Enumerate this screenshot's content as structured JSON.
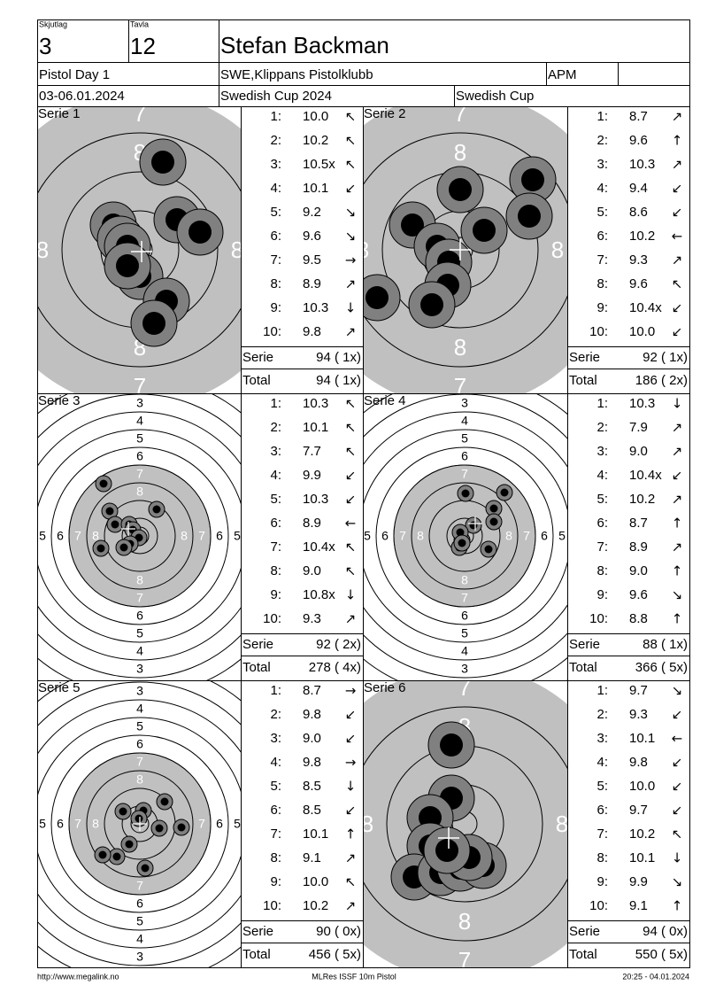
{
  "header": {
    "squad_label": "Skjutlag",
    "squad": "3",
    "lane_label": "Tavla",
    "lane": "12",
    "name": "Stefan Backman",
    "event": "Pistol Day 1",
    "club": "SWE,Klippans Pistolklubb",
    "class": "APM",
    "date": "03-06.01.2024",
    "competition": "Swedish Cup 2024",
    "cup": "Swedish Cup"
  },
  "ring_labels": [
    "3",
    "4",
    "5",
    "6",
    "7",
    "8"
  ],
  "series": [
    {
      "title": "Serie 1",
      "shots": [
        {
          "n": "1:",
          "score": "10.0",
          "dir": "↖"
        },
        {
          "n": "2:",
          "score": "10.2",
          "dir": "↖"
        },
        {
          "n": "3:",
          "score": "10.5x",
          "dir": "↖"
        },
        {
          "n": "4:",
          "score": "10.1",
          "dir": "↙"
        },
        {
          "n": "5:",
          "score": "9.2",
          "dir": "↘"
        },
        {
          "n": "6:",
          "score": "9.6",
          "dir": "↘"
        },
        {
          "n": "7:",
          "score": "9.5",
          "dir": "→"
        },
        {
          "n": "8:",
          "score": "8.9",
          "dir": "↗"
        },
        {
          "n": "9:",
          "score": "10.3",
          "dir": "↓"
        },
        {
          "n": "10:",
          "score": "9.8",
          "dir": "↗"
        }
      ],
      "serie_label": "Serie",
      "serie": "94 ( 1x)",
      "total_label": "Total",
      "total": "94 ( 1x)"
    },
    {
      "title": "Serie 2",
      "shots": [
        {
          "n": "1:",
          "score": "8.7",
          "dir": "↗"
        },
        {
          "n": "2:",
          "score": "9.6",
          "dir": "↑"
        },
        {
          "n": "3:",
          "score": "10.3",
          "dir": "↗"
        },
        {
          "n": "4:",
          "score": "9.4",
          "dir": "↙"
        },
        {
          "n": "5:",
          "score": "8.6",
          "dir": "↙"
        },
        {
          "n": "6:",
          "score": "10.2",
          "dir": "←"
        },
        {
          "n": "7:",
          "score": "9.3",
          "dir": "↗"
        },
        {
          "n": "8:",
          "score": "9.6",
          "dir": "↖"
        },
        {
          "n": "9:",
          "score": "10.4x",
          "dir": "↙"
        },
        {
          "n": "10:",
          "score": "10.0",
          "dir": "↙"
        }
      ],
      "serie_label": "Serie",
      "serie": "92 ( 1x)",
      "total_label": "Total",
      "total": "186 ( 2x)"
    },
    {
      "title": "Serie 3",
      "shots": [
        {
          "n": "1:",
          "score": "10.3",
          "dir": "↖"
        },
        {
          "n": "2:",
          "score": "10.1",
          "dir": "↖"
        },
        {
          "n": "3:",
          "score": "7.7",
          "dir": "↖"
        },
        {
          "n": "4:",
          "score": "9.9",
          "dir": "↙"
        },
        {
          "n": "5:",
          "score": "10.3",
          "dir": "↙"
        },
        {
          "n": "6:",
          "score": "8.9",
          "dir": "←"
        },
        {
          "n": "7:",
          "score": "10.4x",
          "dir": "↖"
        },
        {
          "n": "8:",
          "score": "9.0",
          "dir": "↖"
        },
        {
          "n": "9:",
          "score": "10.8x",
          "dir": "↓"
        },
        {
          "n": "10:",
          "score": "9.3",
          "dir": "↗"
        }
      ],
      "serie_label": "Serie",
      "serie": "92 ( 2x)",
      "total_label": "Total",
      "total": "278 ( 4x)"
    },
    {
      "title": "Serie 4",
      "shots": [
        {
          "n": "1:",
          "score": "10.3",
          "dir": "↓"
        },
        {
          "n": "2:",
          "score": "7.9",
          "dir": "↗"
        },
        {
          "n": "3:",
          "score": "9.0",
          "dir": "↗"
        },
        {
          "n": "4:",
          "score": "10.4x",
          "dir": "↙"
        },
        {
          "n": "5:",
          "score": "10.2",
          "dir": "↗"
        },
        {
          "n": "6:",
          "score": "8.7",
          "dir": "↑"
        },
        {
          "n": "7:",
          "score": "8.9",
          "dir": "↗"
        },
        {
          "n": "8:",
          "score": "9.0",
          "dir": "↑"
        },
        {
          "n": "9:",
          "score": "9.6",
          "dir": "↘"
        },
        {
          "n": "10:",
          "score": "8.8",
          "dir": "↑"
        }
      ],
      "serie_label": "Serie",
      "serie": "88 ( 1x)",
      "total_label": "Total",
      "total": "366 ( 5x)"
    },
    {
      "title": "Serie 5",
      "shots": [
        {
          "n": "1:",
          "score": "8.7",
          "dir": "→"
        },
        {
          "n": "2:",
          "score": "9.8",
          "dir": "↙"
        },
        {
          "n": "3:",
          "score": "9.0",
          "dir": "↙"
        },
        {
          "n": "4:",
          "score": "9.8",
          "dir": "→"
        },
        {
          "n": "5:",
          "score": "8.5",
          "dir": "↓"
        },
        {
          "n": "6:",
          "score": "8.5",
          "dir": "↙"
        },
        {
          "n": "7:",
          "score": "10.1",
          "dir": "↑"
        },
        {
          "n": "8:",
          "score": "9.1",
          "dir": "↗"
        },
        {
          "n": "9:",
          "score": "10.0",
          "dir": "↖"
        },
        {
          "n": "10:",
          "score": "10.2",
          "dir": "↗"
        }
      ],
      "serie_label": "Serie",
      "serie": "90 ( 0x)",
      "total_label": "Total",
      "total": "456 ( 5x)"
    },
    {
      "title": "Serie 6",
      "shots": [
        {
          "n": "1:",
          "score": "9.7",
          "dir": "↘"
        },
        {
          "n": "2:",
          "score": "9.3",
          "dir": "↙"
        },
        {
          "n": "3:",
          "score": "10.1",
          "dir": "←"
        },
        {
          "n": "4:",
          "score": "9.8",
          "dir": "↙"
        },
        {
          "n": "5:",
          "score": "10.0",
          "dir": "↙"
        },
        {
          "n": "6:",
          "score": "9.7",
          "dir": "↙"
        },
        {
          "n": "7:",
          "score": "10.2",
          "dir": "↖"
        },
        {
          "n": "8:",
          "score": "10.1",
          "dir": "↓"
        },
        {
          "n": "9:",
          "score": "9.9",
          "dir": "↘"
        },
        {
          "n": "10:",
          "score": "9.1",
          "dir": "↑"
        }
      ],
      "serie_label": "Serie",
      "serie": "94 ( 0x)",
      "total_label": "Total",
      "total": "550 ( 5x)"
    }
  ],
  "footer": {
    "url": "http://www.megalink.no",
    "program": "MLRes ISSF 10m Pistol",
    "timestamp": "20:25 - 04.01.2024"
  }
}
